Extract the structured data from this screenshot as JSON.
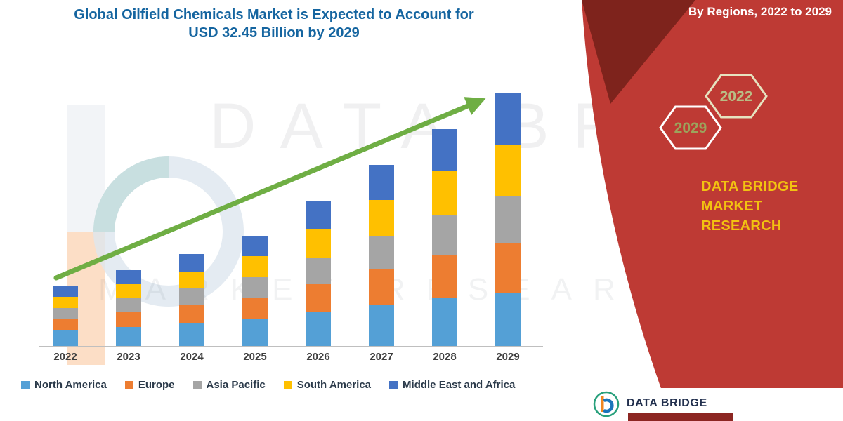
{
  "title": {
    "line1": "Global Oilfield Chemicals Market is Expected to Account for",
    "line2": "USD 32.45 Billion by 2029",
    "color": "#1565A0"
  },
  "watermark": {
    "line1": "DATA BRIDGE",
    "line2": "MARKET RESEARCH"
  },
  "side_panel": {
    "heading": "By Regions, 2022 to 2029",
    "hexagon_back_label": "2022",
    "hexagon_front_label": "2029",
    "brand_line1": "DATA BRIDGE MARKET",
    "brand_line2": "RESEARCH",
    "panel_color": "#BE3A34",
    "accent_color": "#7E231C",
    "brand_text_color": "#F2C211"
  },
  "footer_logo": {
    "text": "DATA BRIDGE"
  },
  "chart_data": {
    "type": "bar",
    "stacked": true,
    "title": "Global Oilfield Chemicals Market is Expected to Account for USD 32.45 Billion by 2029",
    "subtitle": "By Regions, 2022 to 2029",
    "xlabel": "",
    "ylabel": "",
    "unit": "USD Billion",
    "ylim": [
      0,
      35
    ],
    "grid": false,
    "legend_position": "bottom",
    "annotation": "Upward green trend arrow from 2022 to 2029; 2029 total = USD 32.45 Billion",
    "categories": [
      "2022",
      "2023",
      "2024",
      "2025",
      "2026",
      "2027",
      "2028",
      "2029"
    ],
    "totals": [
      7.7,
      9.7,
      11.8,
      14.1,
      18.7,
      23.3,
      27.9,
      32.45
    ],
    "series": [
      {
        "name": "North America",
        "color": "#54A0D6",
        "values": [
          2.0,
          2.4,
          2.9,
          3.4,
          4.3,
          5.3,
          6.2,
          6.9
        ]
      },
      {
        "name": "Europe",
        "color": "#ED7D31",
        "values": [
          1.5,
          1.9,
          2.3,
          2.7,
          3.6,
          4.5,
          5.4,
          6.3
        ]
      },
      {
        "name": "Asia Pacific",
        "color": "#A5A5A5",
        "values": [
          1.4,
          1.8,
          2.2,
          2.7,
          3.5,
          4.4,
          5.3,
          6.1
        ]
      },
      {
        "name": "South America",
        "color": "#FFC000",
        "values": [
          1.4,
          1.8,
          2.2,
          2.7,
          3.6,
          4.6,
          5.6,
          6.6
        ]
      },
      {
        "name": "Middle East and Africa",
        "color": "#4472C4",
        "values": [
          1.4,
          1.8,
          2.2,
          2.6,
          3.7,
          4.5,
          5.4,
          6.55
        ]
      }
    ],
    "arrow_color": "#6FAE44"
  }
}
